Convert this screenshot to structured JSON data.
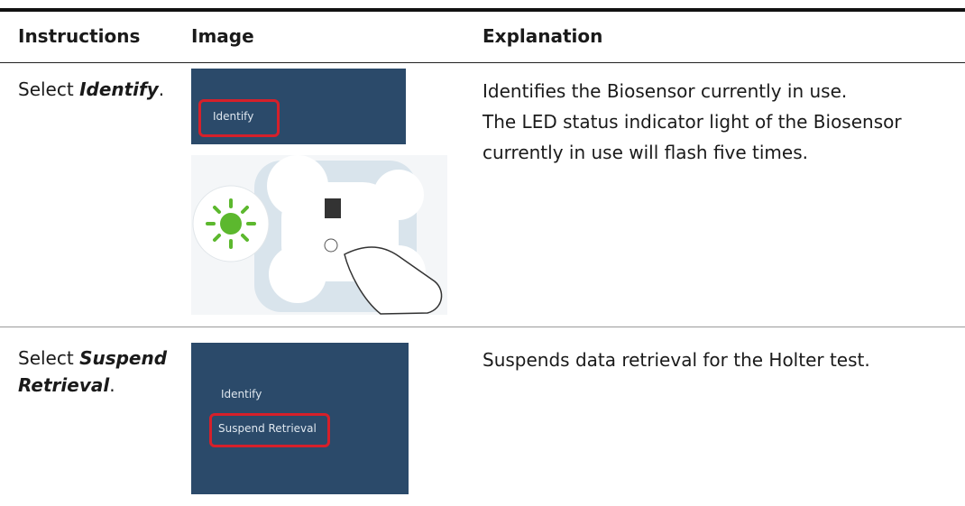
{
  "table": {
    "headers": [
      "Instructions",
      "Image",
      "Explanation"
    ],
    "rows": [
      {
        "instruction": {
          "prefix": "Select ",
          "emphasis": "Identify",
          "suffix": "."
        },
        "image": {
          "menu_items": [
            "Identify"
          ]
        },
        "explanation": [
          "Identifies the Biosensor currently in use.",
          "The LED status indicator light of the Biosensor currently in use will flash five times."
        ]
      },
      {
        "instruction": {
          "prefix": "Select ",
          "emphasis": "Suspend Retrieval",
          "suffix": "."
        },
        "image": {
          "menu_items": [
            "Identify",
            "Suspend Retrieval"
          ]
        },
        "explanation": [
          "Suspends data retrieval for the Holter test."
        ]
      }
    ]
  }
}
